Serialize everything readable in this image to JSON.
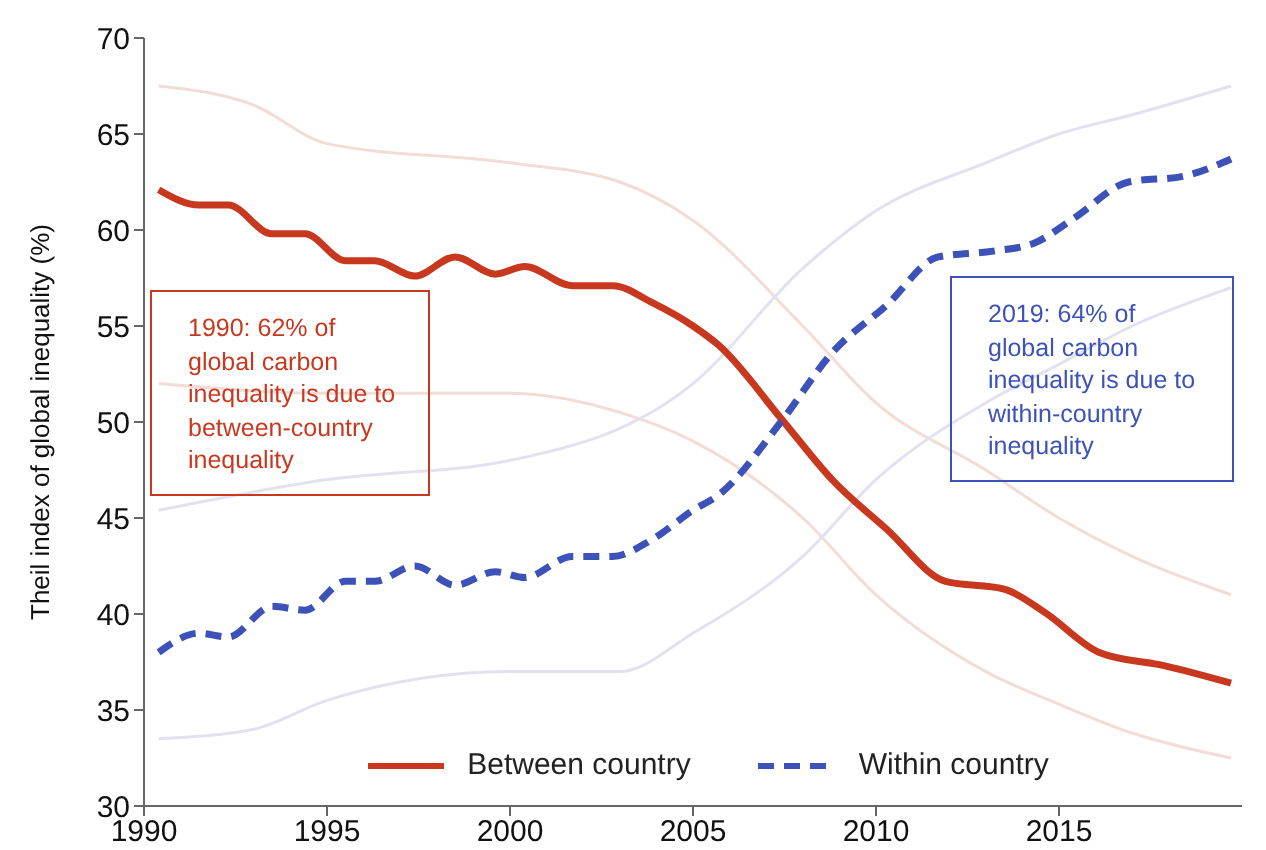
{
  "chart_data": {
    "type": "line",
    "ylabel": "Theil index of global inequality (%)",
    "xlim": [
      1990,
      2020
    ],
    "xticks": [
      1990,
      1995,
      2000,
      2005,
      2010,
      2015
    ],
    "ylim": [
      30,
      70
    ],
    "yticks": [
      30,
      35,
      40,
      45,
      50,
      55,
      60,
      65,
      70
    ],
    "legend": "bottom",
    "marker": "none",
    "annotations": [
      "1990: 62% of global carbon inequality is due to between-country inequality",
      "2019: 64% of global carbon inequality is due to within-country inequality"
    ],
    "series": [
      {
        "name": "Between country",
        "color": "#c8381f",
        "line_style": "solid",
        "x": [
          1990.4,
          1991.5,
          1992.3,
          1993.5,
          1994.4,
          1995.5,
          1996.3,
          1997.4,
          1998.5,
          1999.6,
          2000.4,
          2001.7,
          2002.8,
          2003.9,
          2005,
          2005.7,
          2007.4,
          2008.8,
          2010.3,
          2011.9,
          2013.5,
          2014.6,
          2016.1,
          2017.9,
          2019.7
        ],
        "values": [
          62.1,
          61.3,
          61.3,
          59.8,
          59.8,
          58.4,
          58.4,
          57.6,
          58.6,
          57.7,
          58.1,
          57.1,
          57.1,
          56.2,
          55.0,
          54.0,
          50.2,
          47.0,
          44.4,
          41.7,
          41.3,
          40.1,
          38.0,
          37.3,
          36.4
        ]
      },
      {
        "name": "Within country",
        "color": "#3c52b8",
        "line_style": "dashed",
        "x": [
          1990.4,
          1991.5,
          1992.3,
          1993.5,
          1994.4,
          1995.5,
          1996.3,
          1997.4,
          1998.5,
          1999.6,
          2000.4,
          2001.7,
          2002.8,
          2003.9,
          2005,
          2005.7,
          2007.4,
          2008.8,
          2010.3,
          2011.7,
          2013.2,
          2014.3,
          2015.4,
          2016.9,
          2018.4,
          2019.7
        ],
        "values": [
          38.0,
          39.0,
          38.8,
          40.4,
          40.2,
          41.7,
          41.7,
          42.5,
          41.5,
          42.2,
          41.9,
          43.0,
          43.0,
          43.9,
          45.4,
          46.2,
          50.0,
          53.6,
          56.1,
          58.6,
          58.9,
          59.3,
          60.6,
          62.5,
          62.8,
          63.7
        ]
      },
      {
        "color": "#f3dcd6",
        "line_style": "solid",
        "x": [
          1990.4,
          1993,
          1995,
          2000,
          2003,
          2005,
          2008,
          2010,
          2013,
          2015,
          2017,
          2019.7
        ],
        "values": [
          67.5,
          66.5,
          64.5,
          63.5,
          62.5,
          60.5,
          55,
          51,
          47.5,
          45,
          43,
          41
        ]
      },
      {
        "color": "#f3dcd6",
        "line_style": "solid",
        "x": [
          1990.4,
          1995,
          2000,
          2003,
          2005,
          2008,
          2010,
          2013,
          2015,
          2017,
          2019.7
        ],
        "values": [
          52,
          51.5,
          51.5,
          50.5,
          49,
          45,
          41,
          37,
          35.3,
          33.8,
          32.5
        ]
      },
      {
        "color": "#e2e2ee",
        "line_style": "solid",
        "x": [
          1990.4,
          1995,
          2000,
          2005,
          2008,
          2010,
          2013,
          2015,
          2017,
          2019.7
        ],
        "values": [
          45.4,
          47,
          48,
          52,
          58,
          61,
          63.5,
          65,
          66,
          67.5
        ]
      },
      {
        "color": "#e2e2ee",
        "line_style": "solid",
        "x": [
          1990.4,
          1993,
          1995,
          2000,
          2003,
          2005,
          2008,
          2010,
          2013,
          2015,
          2017,
          2019.7
        ],
        "values": [
          33.5,
          34,
          35.5,
          37,
          37,
          39,
          43,
          47,
          51,
          53,
          55,
          57
        ]
      }
    ]
  }
}
